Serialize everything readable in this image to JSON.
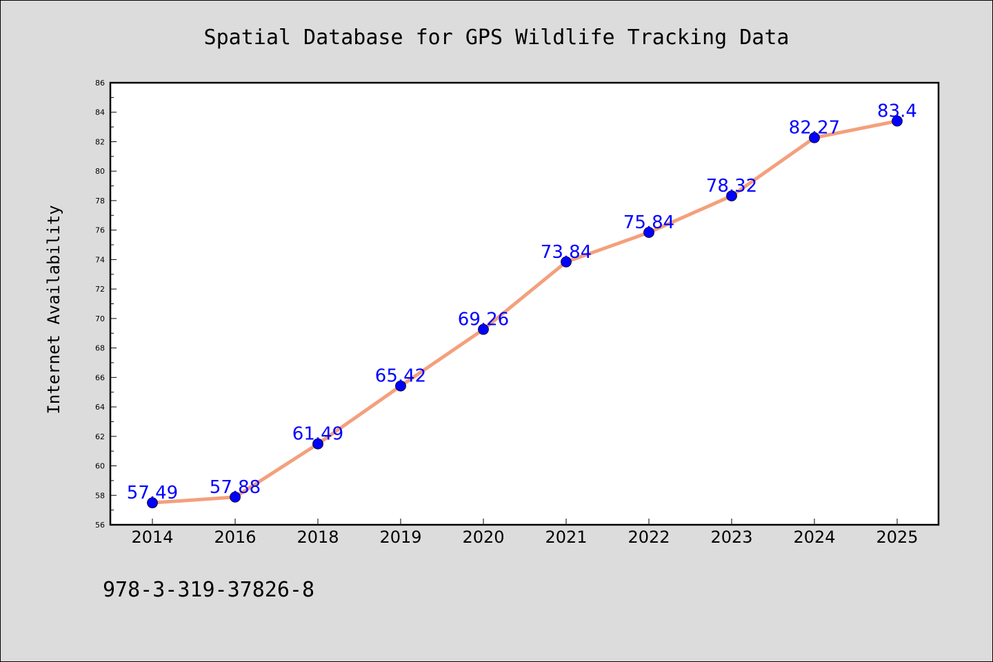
{
  "chart_data": {
    "type": "line",
    "title": "Spatial Database for GPS Wildlife Tracking Data",
    "xlabel": "",
    "ylabel": "Internet Availability",
    "categories": [
      "2014",
      "2016",
      "2018",
      "2019",
      "2020",
      "2021",
      "2022",
      "2023",
      "2024",
      "2025"
    ],
    "series": [
      {
        "values": [
          57.49,
          57.88,
          61.49,
          65.42,
          69.26,
          73.84,
          75.84,
          78.32,
          82.27,
          83.4
        ],
        "labels": [
          "57.49",
          "57.88",
          "61.49",
          "65.42",
          "69.26",
          "73.84",
          "75.84",
          "78.32",
          "82.27",
          "83.4"
        ]
      }
    ],
    "ylim": [
      56,
      86
    ],
    "yticks": [
      56,
      58,
      60,
      62,
      64,
      66,
      68,
      70,
      72,
      74,
      76,
      78,
      80,
      82,
      84,
      86
    ],
    "grid": false,
    "legend": "none",
    "colors": {
      "line": "#f4a07c",
      "marker": "#0000ff",
      "data_label": "#0000ff",
      "plot_background": "#ffffff",
      "figure_background": "#dcdcdc"
    }
  },
  "footer": {
    "text": "978-3-319-37826-8"
  }
}
